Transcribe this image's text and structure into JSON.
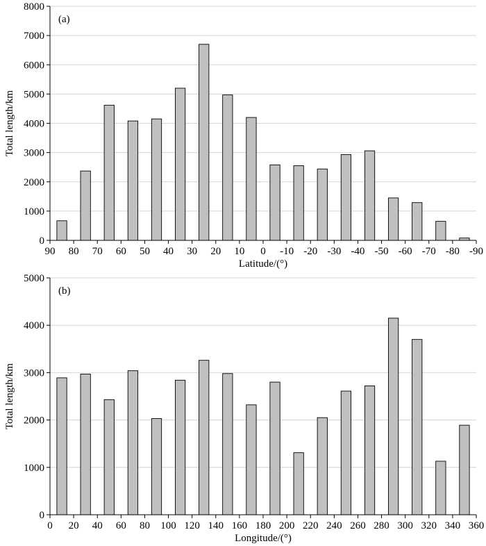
{
  "colors": {
    "bar_fill": "#c0c0c0",
    "bar_stroke": "#000000",
    "grid": "#d4d4d4",
    "axis": "#000000"
  },
  "chart_data": [
    {
      "id": "a",
      "type": "bar",
      "panel_label": "(a)",
      "title": "",
      "xlabel": "Latitude/(°)",
      "ylabel": "Total length/km",
      "x_tick_labels": [
        "90",
        "80",
        "70",
        "60",
        "50",
        "40",
        "30",
        "20",
        "10",
        "0",
        "-10",
        "-20",
        "-30",
        "-40",
        "-50",
        "-60",
        "-70",
        "-80",
        "-90"
      ],
      "categories": [
        "90 to 80",
        "80 to 70",
        "70 to 60",
        "60 to 50",
        "50 to 40",
        "40 to 30",
        "30 to 20",
        "20 to 10",
        "10 to 0",
        "0 to -10",
        "-10 to -20",
        "-20 to -30",
        "-30 to -40",
        "-40 to -50",
        "-50 to -60",
        "-60 to -70",
        "-70 to -80",
        "-80 to -90"
      ],
      "values": [
        670,
        2370,
        4620,
        4080,
        4150,
        5200,
        6700,
        4970,
        4200,
        2580,
        2550,
        2440,
        2930,
        3060,
        1450,
        1290,
        650,
        80
      ],
      "ylim": [
        0,
        8000
      ],
      "yticks": [
        0,
        1000,
        2000,
        3000,
        4000,
        5000,
        6000,
        7000,
        8000
      ],
      "grid": true
    },
    {
      "id": "b",
      "type": "bar",
      "panel_label": "(b)",
      "title": "",
      "xlabel": "Longitude/(°)",
      "ylabel": "Total length/km",
      "x_tick_labels": [
        "0",
        "20",
        "40",
        "60",
        "80",
        "100",
        "120",
        "140",
        "160",
        "180",
        "200",
        "220",
        "240",
        "260",
        "280",
        "300",
        "320",
        "340",
        "360"
      ],
      "categories": [
        "0 to 20",
        "20 to 40",
        "40 to 60",
        "60 to 80",
        "80 to 100",
        "100 to 120",
        "120 to 140",
        "140 to 160",
        "160 to 180",
        "180 to 200",
        "200 to 220",
        "220 to 240",
        "240 to 260",
        "260 to 280",
        "280 to 300",
        "300 to 320",
        "320 to 340",
        "340 to 360"
      ],
      "values": [
        2890,
        2970,
        2430,
        3040,
        2030,
        2840,
        3260,
        2980,
        2320,
        2800,
        1310,
        2050,
        2610,
        2720,
        4150,
        3700,
        1130,
        1890
      ],
      "ylim": [
        0,
        5000
      ],
      "yticks": [
        0,
        1000,
        2000,
        3000,
        4000,
        5000
      ],
      "grid": true
    }
  ]
}
